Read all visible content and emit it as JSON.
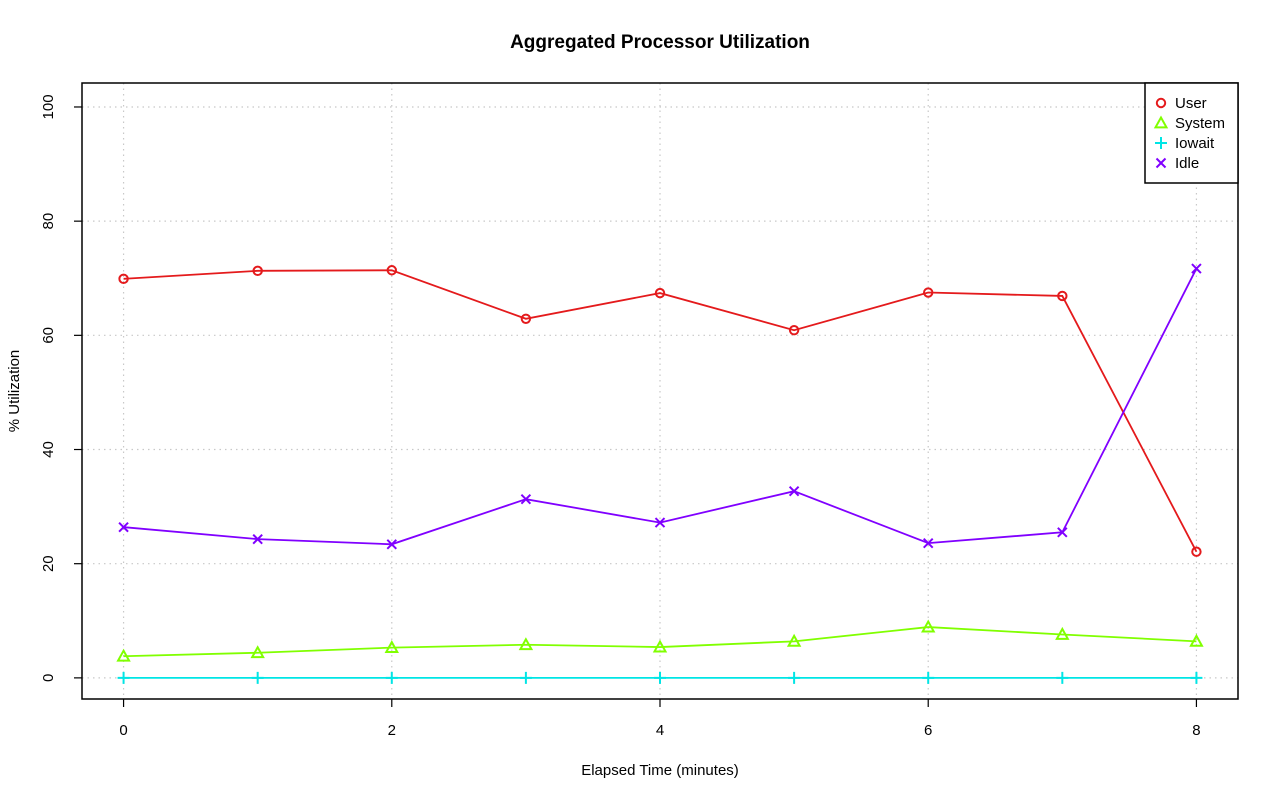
{
  "chart_data": {
    "type": "line",
    "title": "Aggregated Processor Utilization",
    "xlabel": "Elapsed Time (minutes)",
    "ylabel": "% Utilization",
    "x": [
      0,
      1,
      2,
      3,
      4,
      5,
      6,
      7,
      8
    ],
    "xlim": [
      -0.31,
      8.31
    ],
    "ylim": [
      -3.7,
      104.2
    ],
    "xticks": [
      0,
      2,
      4,
      6,
      8
    ],
    "yticks": [
      0,
      20,
      40,
      60,
      80,
      100
    ],
    "grid": true,
    "legend_position": "top-right",
    "series": [
      {
        "name": "User",
        "color": "#e41a1c",
        "marker": "circle",
        "values": [
          69.9,
          71.3,
          71.4,
          62.9,
          67.4,
          60.9,
          67.5,
          66.9,
          22.1
        ]
      },
      {
        "name": "System",
        "color": "#80ff00",
        "marker": "triangle",
        "values": [
          3.8,
          4.4,
          5.3,
          5.8,
          5.4,
          6.4,
          8.9,
          7.6,
          6.4
        ]
      },
      {
        "name": "Iowait",
        "color": "#00e5e5",
        "marker": "plus",
        "values": [
          0,
          0,
          0,
          0,
          0,
          0,
          0,
          0,
          0
        ]
      },
      {
        "name": "Idle",
        "color": "#8000ff",
        "marker": "cross",
        "values": [
          26.4,
          24.3,
          23.4,
          31.3,
          27.2,
          32.7,
          23.6,
          25.5,
          71.7
        ]
      }
    ]
  }
}
